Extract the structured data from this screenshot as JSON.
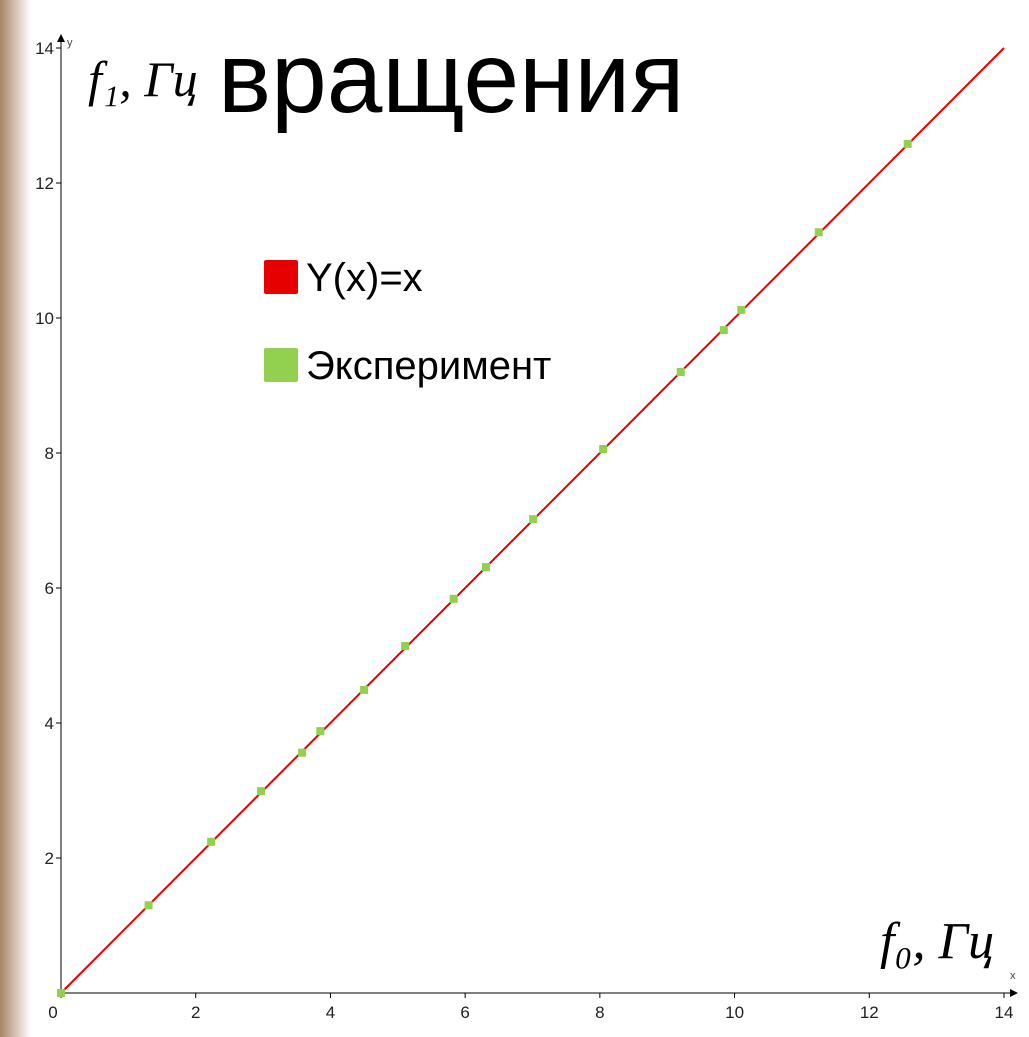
{
  "chart_data": {
    "type": "scatter",
    "title": "вращения",
    "x_label": "f₀, Гц",
    "y_label": "f₁, Гц",
    "x_axis_name": "x",
    "y_axis_name": "y",
    "xlim": [
      0,
      14
    ],
    "ylim": [
      0,
      14
    ],
    "xticks": [
      0,
      2,
      4,
      6,
      8,
      10,
      12,
      14
    ],
    "yticks": [
      2,
      4,
      6,
      8,
      10,
      12,
      14
    ],
    "series": [
      {
        "name": "Y(x)=x",
        "color": "#e60000",
        "kind": "line",
        "x": [
          0,
          14
        ],
        "values": [
          0,
          14
        ]
      },
      {
        "name": "Эксперимент",
        "color": "#92d050",
        "kind": "scatter",
        "x": [
          0,
          1.3,
          2.23,
          2.97,
          3.58,
          3.85,
          4.5,
          5.11,
          5.83,
          6.31,
          7.01,
          8.05,
          9.2,
          9.84,
          10.1,
          11.25,
          12.57
        ],
        "values": [
          0,
          1.3,
          2.24,
          2.99,
          3.56,
          3.88,
          4.49,
          5.14,
          5.84,
          6.31,
          7.02,
          8.06,
          9.2,
          9.82,
          10.12,
          11.27,
          12.58
        ]
      }
    ]
  }
}
